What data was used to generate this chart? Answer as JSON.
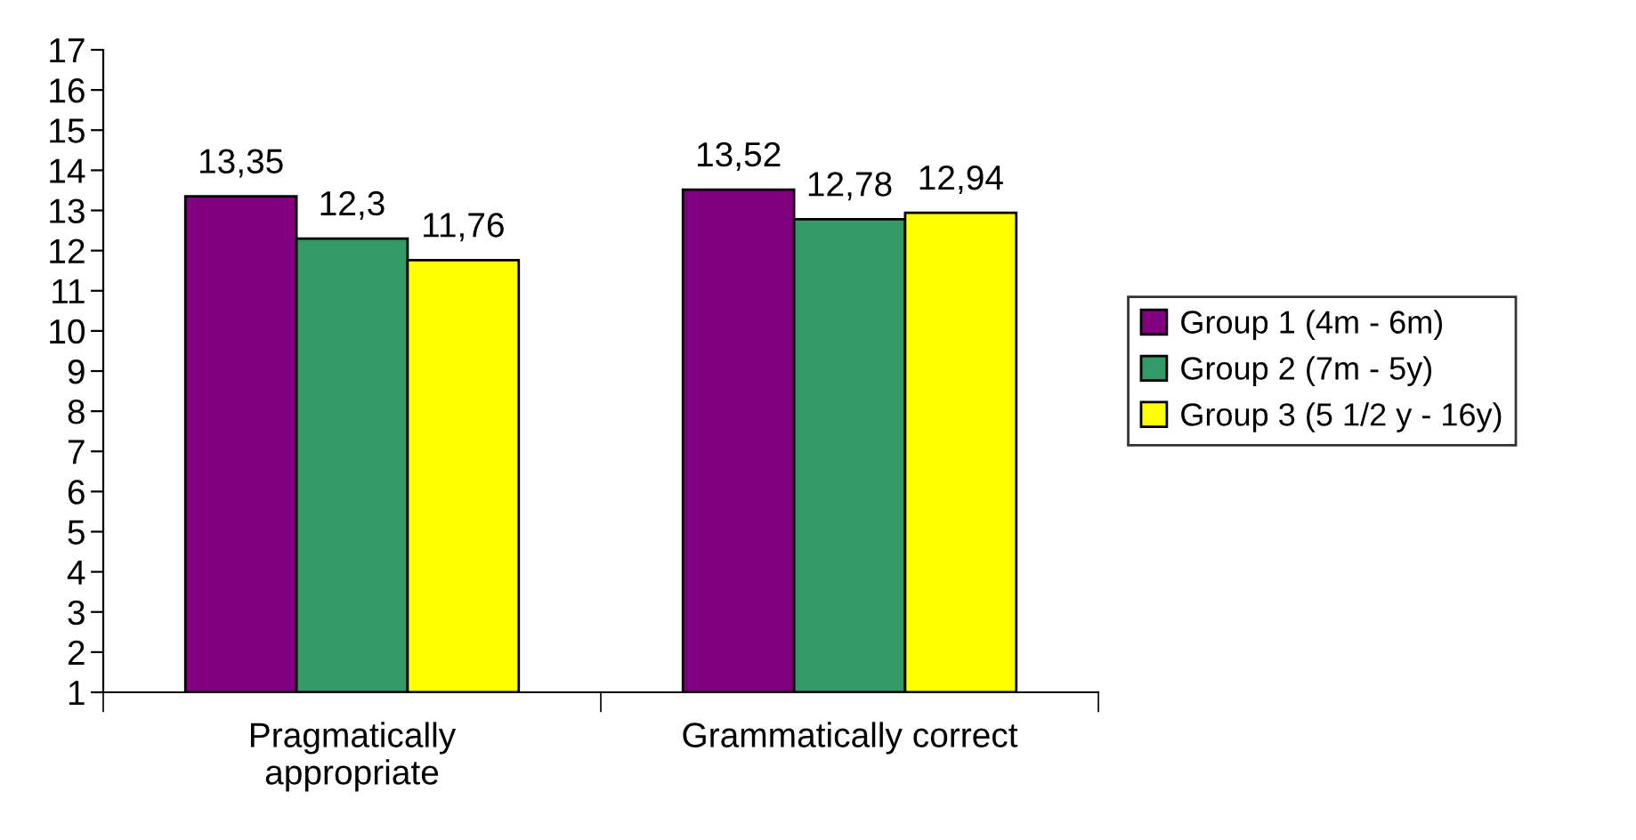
{
  "chart_data": {
    "type": "bar",
    "categories": [
      "Pragmatically\nappropriate",
      "Grammatically correct"
    ],
    "series": [
      {
        "name": "Group 1 (4m - 6m)",
        "color": "#800080",
        "values": [
          13.35,
          13.52
        ],
        "value_labels": [
          "13,35",
          "13,52"
        ]
      },
      {
        "name": "Group 2 (7m - 5y)",
        "color": "#339966",
        "values": [
          12.3,
          12.78
        ],
        "value_labels": [
          "12,3",
          "12,78"
        ]
      },
      {
        "name": "Group 3 (5 1/2 y - 16y)",
        "color": "#ffff00",
        "values": [
          11.76,
          12.94
        ],
        "value_labels": [
          "11,76",
          "12,94"
        ]
      }
    ],
    "ylim": [
      1,
      17
    ],
    "yticks": [
      1,
      2,
      3,
      4,
      5,
      6,
      7,
      8,
      9,
      10,
      11,
      12,
      13,
      14,
      15,
      16,
      17
    ],
    "grid": false,
    "legend": "right"
  }
}
